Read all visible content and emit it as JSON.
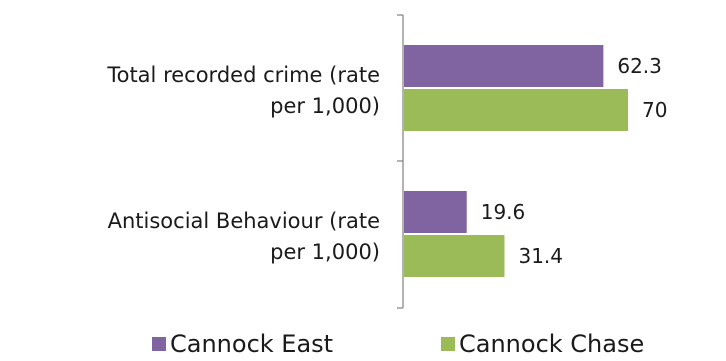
{
  "chart_data": {
    "type": "bar",
    "orientation": "horizontal",
    "categories": [
      [
        "Total recorded crime (rate",
        "per 1,000)"
      ],
      [
        "Antisocial Behaviour (rate",
        "per 1,000)"
      ]
    ],
    "series": [
      {
        "name": "Cannock East",
        "color": "#8064a2",
        "values": [
          62.3,
          19.6
        ],
        "labels": [
          "62.3",
          "19.6"
        ]
      },
      {
        "name": "Cannock Chase",
        "color": "#9bbb59",
        "values": [
          70,
          31.4
        ],
        "labels": [
          "70",
          "31.4"
        ]
      }
    ],
    "xlim": [
      0,
      80
    ],
    "axis_visible": false,
    "gridlines": false,
    "legend_position": "bottom"
  }
}
